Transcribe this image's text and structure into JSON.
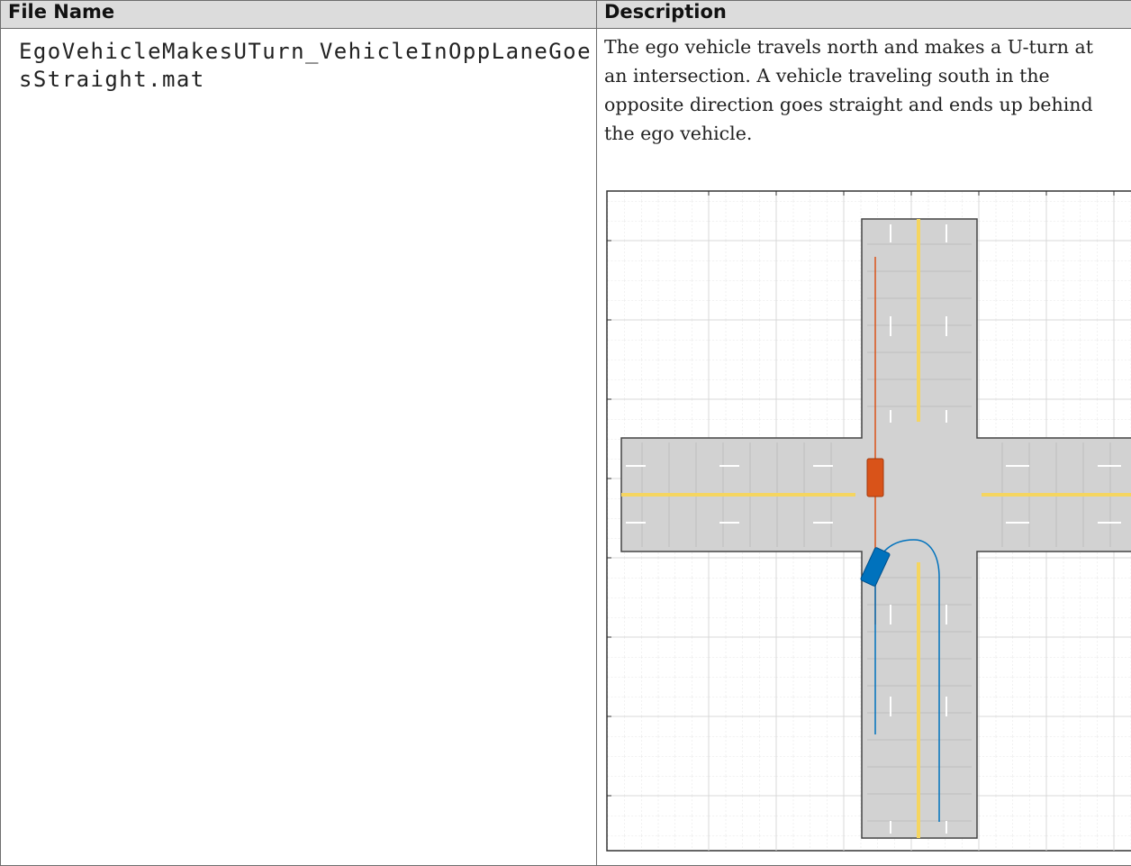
{
  "table": {
    "header": [
      "File Name",
      "Description"
    ],
    "rows": [
      [
        "EgoVehicleMakesUTurn_VehicleInOppLaneGoesStraight.mat",
        "The ego vehicle travels north and makes a U-turn at an intersection. A vehicle traveling south in the opposite direction goes straight and ends up behind the ego vehicle."
      ]
    ]
  }
}
